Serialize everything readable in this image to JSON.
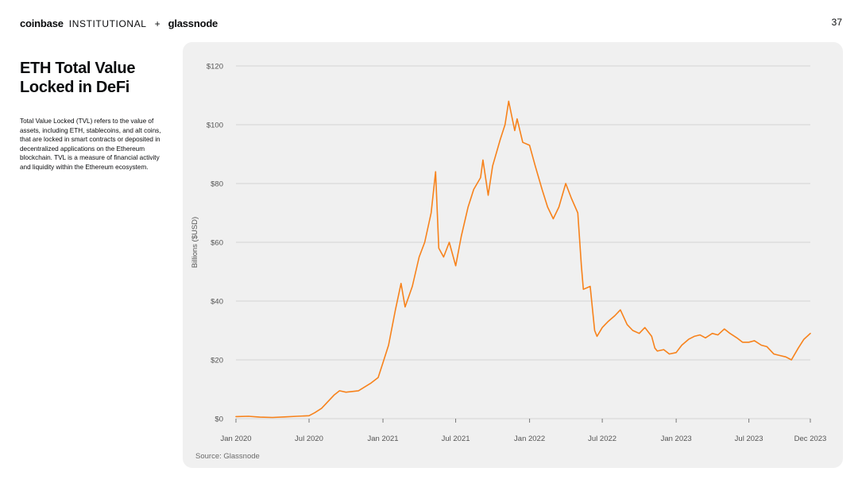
{
  "header": {
    "brand_coinbase": "coinbase",
    "brand_institutional": "INSTITUTIONAL",
    "brand_plus": "+",
    "brand_glassnode": "glassnode",
    "page_number": "37"
  },
  "sidebar": {
    "title": "ETH Total Value Locked in DeFi",
    "description": "Total Value Locked (TVL) refers to the value of assets, including ETH, stablecoins, and alt coins, that are locked in smart contracts or deposited in decentralized applications on the Ethereum blockchain. TVL is a measure of financial activity and liquidity within the Ethereum ecosystem."
  },
  "source": "Source: Glassnode",
  "colors": {
    "line": "#f7821b",
    "panel": "#f0f0f0",
    "grid": "#d4d4d4",
    "text": "#0a0b0d"
  },
  "chart_data": {
    "type": "line",
    "ylabel": "Billions ($USD)",
    "xlabel": "",
    "ylim": [
      0,
      120
    ],
    "xlim": [
      "2020-01-01",
      "2023-12-01"
    ],
    "yticks": [
      0,
      20,
      40,
      60,
      80,
      100,
      120
    ],
    "ytick_labels": [
      "$0",
      "$20",
      "$40",
      "$60",
      "$80",
      "$100",
      "$120"
    ],
    "xticks": [
      "2020-01-01",
      "2020-07-01",
      "2021-01-01",
      "2021-07-01",
      "2022-01-01",
      "2022-07-01",
      "2023-01-01",
      "2023-07-01",
      "2023-12-01"
    ],
    "xtick_labels": [
      "Jan 2020",
      "Jul 2020",
      "Jan 2021",
      "Jul 2021",
      "Jan 2022",
      "Jul 2022",
      "Jan 2023",
      "Jul 2023",
      "Dec 2023"
    ],
    "grid": true,
    "legend": "none",
    "series": [
      {
        "x": [
          "2020-01-01",
          "2020-02-01",
          "2020-03-01",
          "2020-04-01",
          "2020-05-01",
          "2020-06-01",
          "2020-07-01",
          "2020-07-15",
          "2020-08-01",
          "2020-08-15",
          "2020-09-01",
          "2020-09-15",
          "2020-10-01",
          "2020-11-01",
          "2020-12-01",
          "2020-12-20",
          "2021-01-01",
          "2021-01-15",
          "2021-02-01",
          "2021-02-15",
          "2021-02-25",
          "2021-03-15",
          "2021-04-01",
          "2021-04-15",
          "2021-05-01",
          "2021-05-12",
          "2021-05-20",
          "2021-06-01",
          "2021-06-15",
          "2021-07-01",
          "2021-07-15",
          "2021-08-01",
          "2021-08-15",
          "2021-09-01",
          "2021-09-07",
          "2021-09-20",
          "2021-10-01",
          "2021-10-20",
          "2021-11-01",
          "2021-11-10",
          "2021-11-25",
          "2021-12-01",
          "2021-12-15",
          "2022-01-01",
          "2022-01-15",
          "2022-02-01",
          "2022-02-15",
          "2022-03-01",
          "2022-03-15",
          "2022-04-01",
          "2022-04-15",
          "2022-05-01",
          "2022-05-10",
          "2022-05-15",
          "2022-06-01",
          "2022-06-12",
          "2022-06-18",
          "2022-07-01",
          "2022-07-15",
          "2022-08-01",
          "2022-08-15",
          "2022-09-01",
          "2022-09-15",
          "2022-10-01",
          "2022-10-15",
          "2022-11-01",
          "2022-11-09",
          "2022-11-15",
          "2022-12-01",
          "2022-12-15",
          "2023-01-01",
          "2023-01-15",
          "2023-02-01",
          "2023-02-15",
          "2023-03-01",
          "2023-03-15",
          "2023-04-01",
          "2023-04-15",
          "2023-05-01",
          "2023-05-15",
          "2023-06-01",
          "2023-06-15",
          "2023-07-01",
          "2023-07-15",
          "2023-08-01",
          "2023-08-15",
          "2023-09-01",
          "2023-09-15",
          "2023-10-01",
          "2023-10-15",
          "2023-11-01",
          "2023-11-15",
          "2023-12-01"
        ],
        "y": [
          0.7,
          0.8,
          0.5,
          0.4,
          0.6,
          0.8,
          1.0,
          2.0,
          3.5,
          5.5,
          8.0,
          9.5,
          9.0,
          9.5,
          12.0,
          14.0,
          19.0,
          25.0,
          37.0,
          46.0,
          38.0,
          45.0,
          55.0,
          60.0,
          70.0,
          84.0,
          58.0,
          55.0,
          60.0,
          52.0,
          62.0,
          72.0,
          78.0,
          82.0,
          88.0,
          76.0,
          86.0,
          95.0,
          100.0,
          108.0,
          98.0,
          102.0,
          94.0,
          93.0,
          86.0,
          78.0,
          72.0,
          68.0,
          72.0,
          80.0,
          75.0,
          70.0,
          52.0,
          44.0,
          45.0,
          30.0,
          28.0,
          31.0,
          33.0,
          35.0,
          37.0,
          32.0,
          30.0,
          29.0,
          31.0,
          28.0,
          24.0,
          23.0,
          23.5,
          22.0,
          22.5,
          25.0,
          27.0,
          28.0,
          28.5,
          27.5,
          29.0,
          28.5,
          30.5,
          29.0,
          27.5,
          26.0,
          26.0,
          26.5,
          25.0,
          24.5,
          22.0,
          21.5,
          21.0,
          20.0,
          24.0,
          27.0,
          29.0
        ]
      }
    ]
  }
}
